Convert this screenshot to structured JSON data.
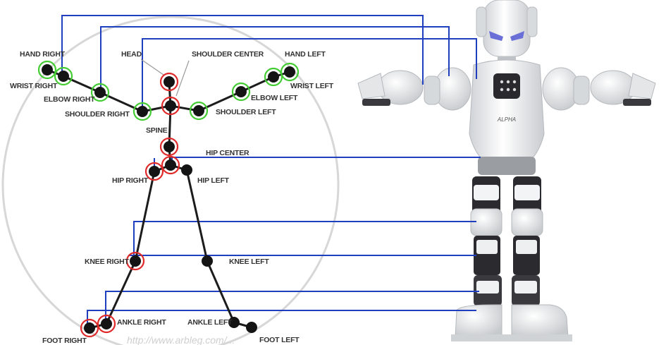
{
  "skeleton": {
    "joints": [
      {
        "id": "hand-right",
        "label": "HAND RIGHT",
        "ring": "green"
      },
      {
        "id": "wrist-right",
        "label": "WRIST RIGHT",
        "ring": "green"
      },
      {
        "id": "elbow-right",
        "label": "ELBOW RIGHT",
        "ring": "green"
      },
      {
        "id": "shoulder-right",
        "label": "SHOULDER RIGHT",
        "ring": "green"
      },
      {
        "id": "head",
        "label": "HEAD",
        "ring": "red"
      },
      {
        "id": "shoulder-center",
        "label": "SHOULDER CENTER",
        "ring": "red"
      },
      {
        "id": "shoulder-left",
        "label": "SHOULDER LEFT",
        "ring": "green"
      },
      {
        "id": "elbow-left",
        "label": "ELBOW LEFT",
        "ring": "green"
      },
      {
        "id": "wrist-left",
        "label": "WRIST LEFT",
        "ring": "green"
      },
      {
        "id": "hand-left",
        "label": "HAND LEFT",
        "ring": "green"
      },
      {
        "id": "spine",
        "label": "SPINE",
        "ring": "red"
      },
      {
        "id": "hip-center",
        "label": "HIP CENTER",
        "ring": "red"
      },
      {
        "id": "hip-right",
        "label": "HIP RIGHT",
        "ring": "red"
      },
      {
        "id": "hip-left",
        "label": "HIP LEFT",
        "ring": "none"
      },
      {
        "id": "knee-right",
        "label": "KNEE RIGHT",
        "ring": "red"
      },
      {
        "id": "knee-left",
        "label": "KNEE LEFT",
        "ring": "none"
      },
      {
        "id": "ankle-right",
        "label": "ANKLE RIGHT",
        "ring": "red"
      },
      {
        "id": "ankle-left",
        "label": "ANKLE LEFT",
        "ring": "none"
      },
      {
        "id": "foot-right",
        "label": "FOOT RIGHT",
        "ring": "red"
      },
      {
        "id": "foot-left",
        "label": "FOOT LEFT",
        "ring": "none"
      }
    ],
    "bones": [
      [
        "hand-right",
        "wrist-right"
      ],
      [
        "wrist-right",
        "elbow-right"
      ],
      [
        "elbow-right",
        "shoulder-right"
      ],
      [
        "shoulder-right",
        "shoulder-center"
      ],
      [
        "shoulder-center",
        "shoulder-left"
      ],
      [
        "shoulder-left",
        "elbow-left"
      ],
      [
        "elbow-left",
        "wrist-left"
      ],
      [
        "wrist-left",
        "hand-left"
      ],
      [
        "head",
        "shoulder-center"
      ],
      [
        "shoulder-center",
        "spine"
      ],
      [
        "spine",
        "hip-center"
      ],
      [
        "hip-center",
        "hip-right"
      ],
      [
        "hip-center",
        "hip-left"
      ],
      [
        "hip-right",
        "knee-right"
      ],
      [
        "knee-right",
        "ankle-right"
      ],
      [
        "ankle-right",
        "foot-right"
      ],
      [
        "hip-left",
        "knee-left"
      ],
      [
        "knee-left",
        "ankle-left"
      ],
      [
        "ankle-left",
        "foot-left"
      ]
    ]
  },
  "watermark": "http://www.arbleg.com/...",
  "robot": {
    "chest_text": "ALPHA"
  },
  "colors": {
    "joint": "#141414",
    "bone": "#1c1c1c",
    "ring_green": "#44cc33",
    "ring_red": "#e02a2a",
    "mapping_line": "#1f3fbf",
    "circle": "#d7d7d7"
  }
}
